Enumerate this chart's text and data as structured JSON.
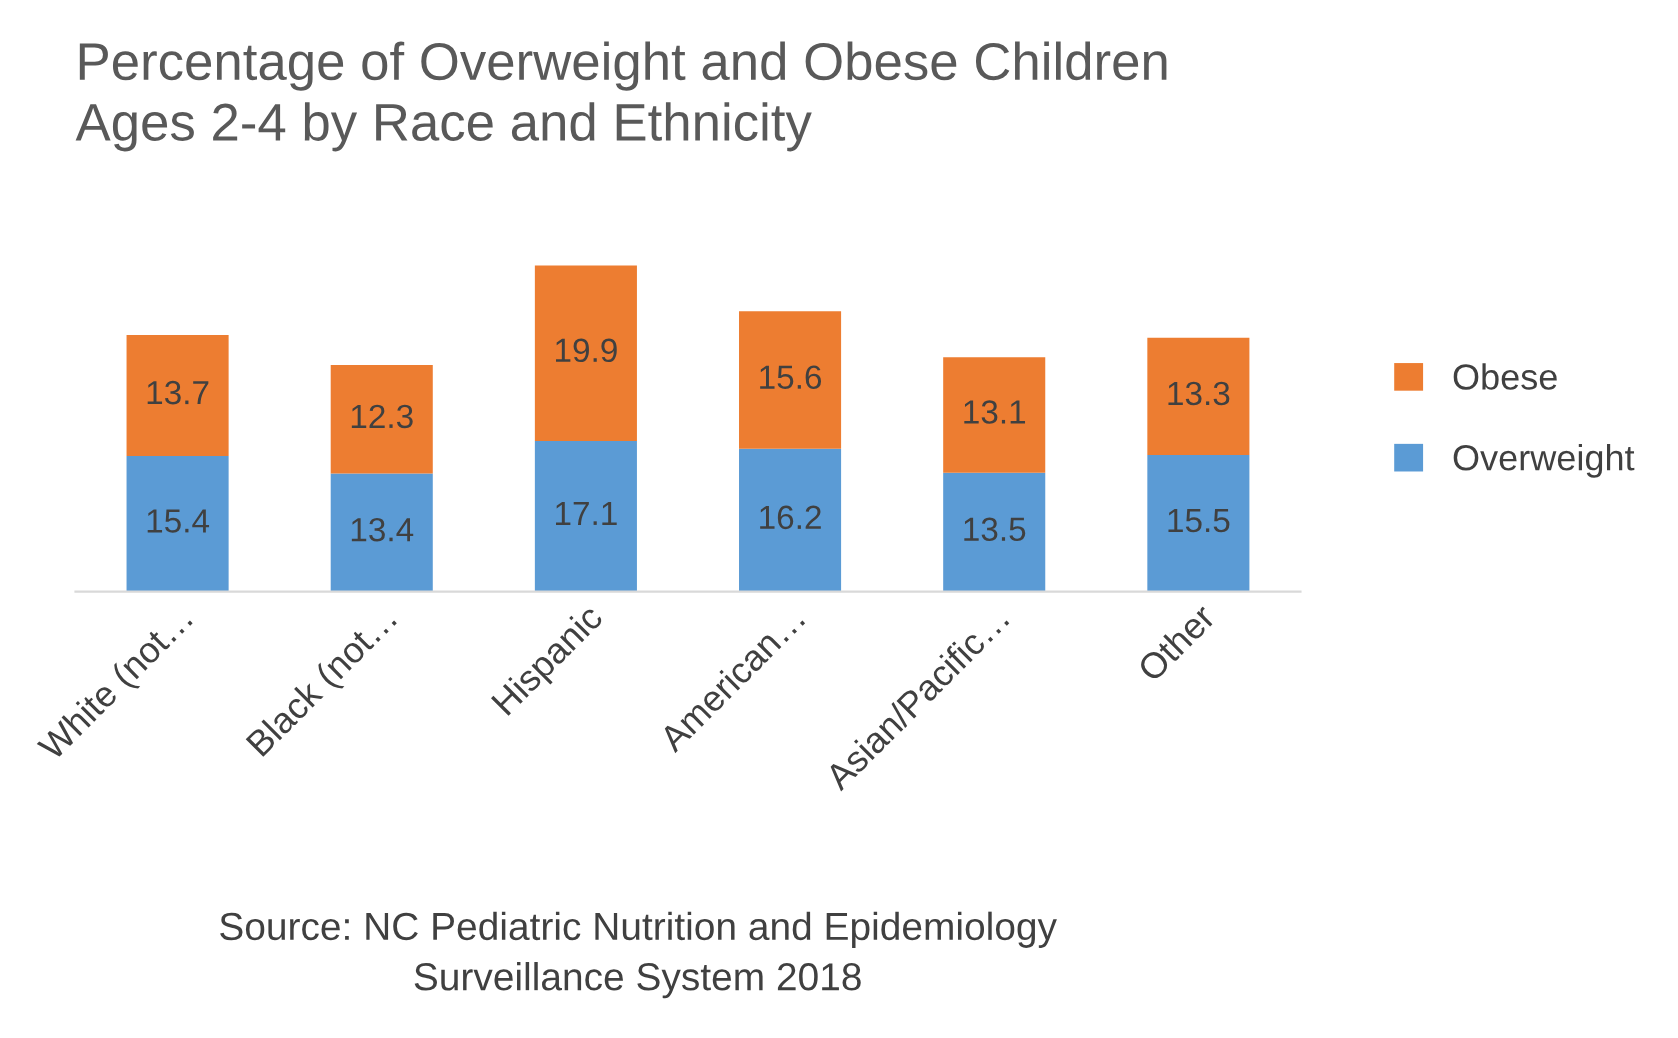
{
  "chart_data": {
    "type": "bar",
    "stacked": true,
    "title": "Percentage of Overweight and Obese Children\nAges 2-4 by Race and Ethnicity",
    "categories": [
      "White (not…",
      "Black (not…",
      "Hispanic",
      "American…",
      "Asian/Pacific…",
      "Other"
    ],
    "series": [
      {
        "name": "Overweight",
        "color": "#5b9bd5",
        "values": [
          15.4,
          13.4,
          17.1,
          16.2,
          13.5,
          15.5
        ]
      },
      {
        "name": "Obese",
        "color": "#ed7d31",
        "values": [
          13.7,
          12.3,
          19.9,
          15.6,
          13.1,
          13.3
        ]
      }
    ],
    "data_labels": true,
    "legend": "right",
    "grid": false,
    "annotations": [
      "Source: NC Pediatric Nutrition and Epidemiology\nSurveillance System 2018"
    ]
  }
}
